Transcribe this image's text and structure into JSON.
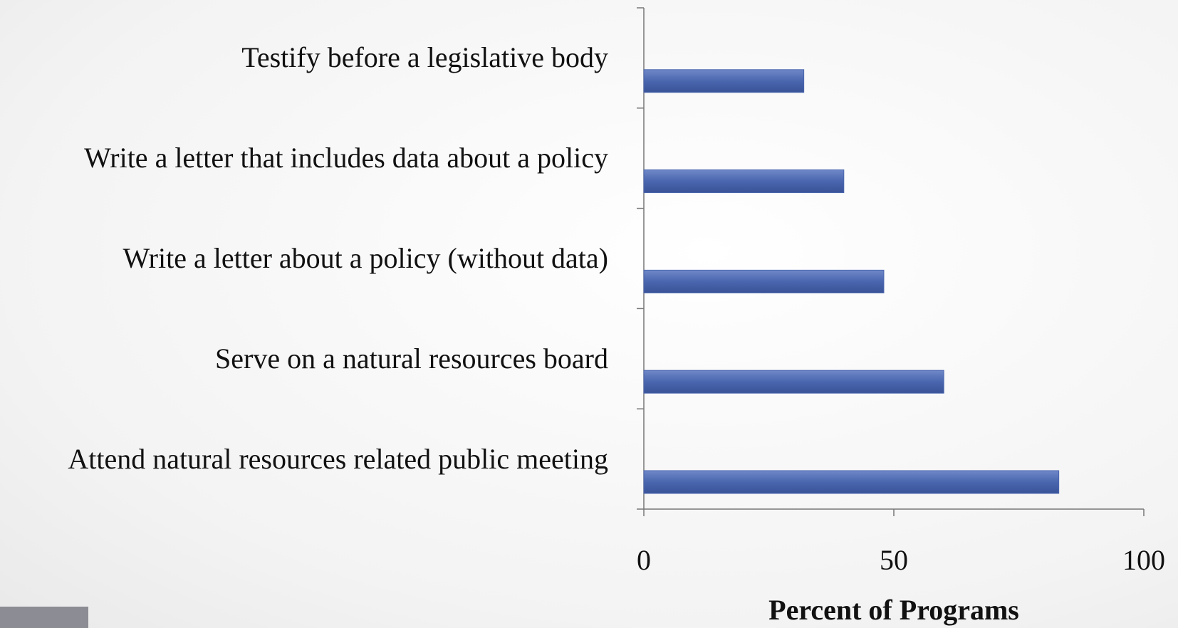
{
  "chart_data": {
    "type": "bar",
    "orientation": "horizontal",
    "categories": [
      "Testify before a legislative body",
      "Write a letter that includes data about a policy",
      "Write a letter about a policy (without data)",
      "Serve on a natural resources board",
      "Attend natural resources related public meeting"
    ],
    "values": [
      32,
      40,
      48,
      60,
      83
    ],
    "color": "#4a66ae",
    "xlabel": "Percent of Programs",
    "xlim": [
      0,
      100
    ],
    "xticks": [
      0,
      50,
      100
    ],
    "grid": false
  }
}
